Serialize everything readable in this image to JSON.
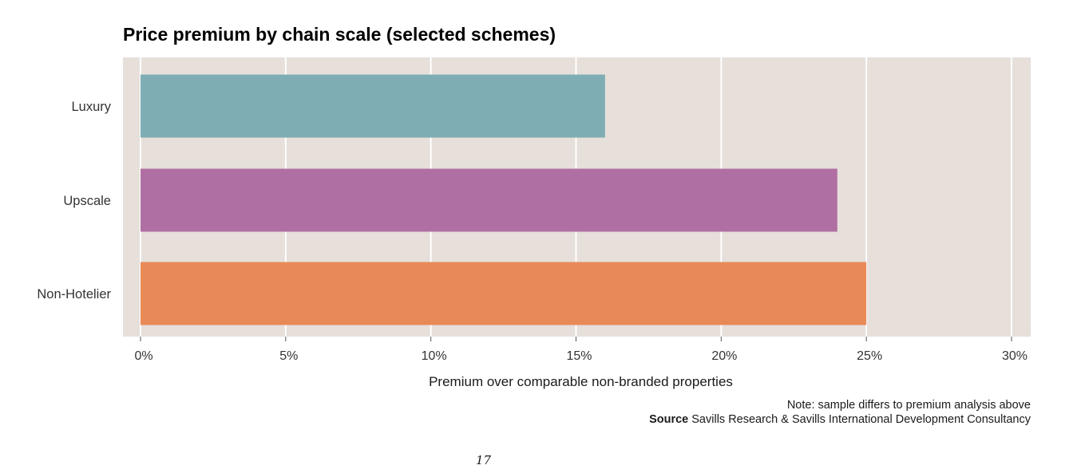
{
  "chart_data": {
    "type": "bar",
    "orientation": "horizontal",
    "title": "Price premium by chain scale (selected schemes)",
    "categories": [
      "Luxury",
      "Upscale",
      "Non-Hotelier"
    ],
    "values": [
      16,
      24,
      25
    ],
    "value_unit": "%",
    "colors": [
      "#7fadb4",
      "#b06fa2",
      "#e88a57"
    ],
    "xlabel": "Premium over comparable non-branded properties",
    "ylabel": "",
    "xlim": [
      0,
      30
    ],
    "x_ticks": [
      0,
      5,
      10,
      15,
      20,
      25,
      30
    ],
    "x_tick_labels": [
      "0%",
      "5%",
      "10%",
      "15%",
      "20%",
      "25%",
      "30%"
    ],
    "grid": true,
    "panel_color": "#e6dfda",
    "grid_color": "#ffffff",
    "legend": "none"
  },
  "note": {
    "text": "Note: sample differs to premium analysis above",
    "source_label": "Source",
    "source_text": " Savills Research & Savills International Development Consultancy"
  },
  "page": {
    "number": "17"
  }
}
